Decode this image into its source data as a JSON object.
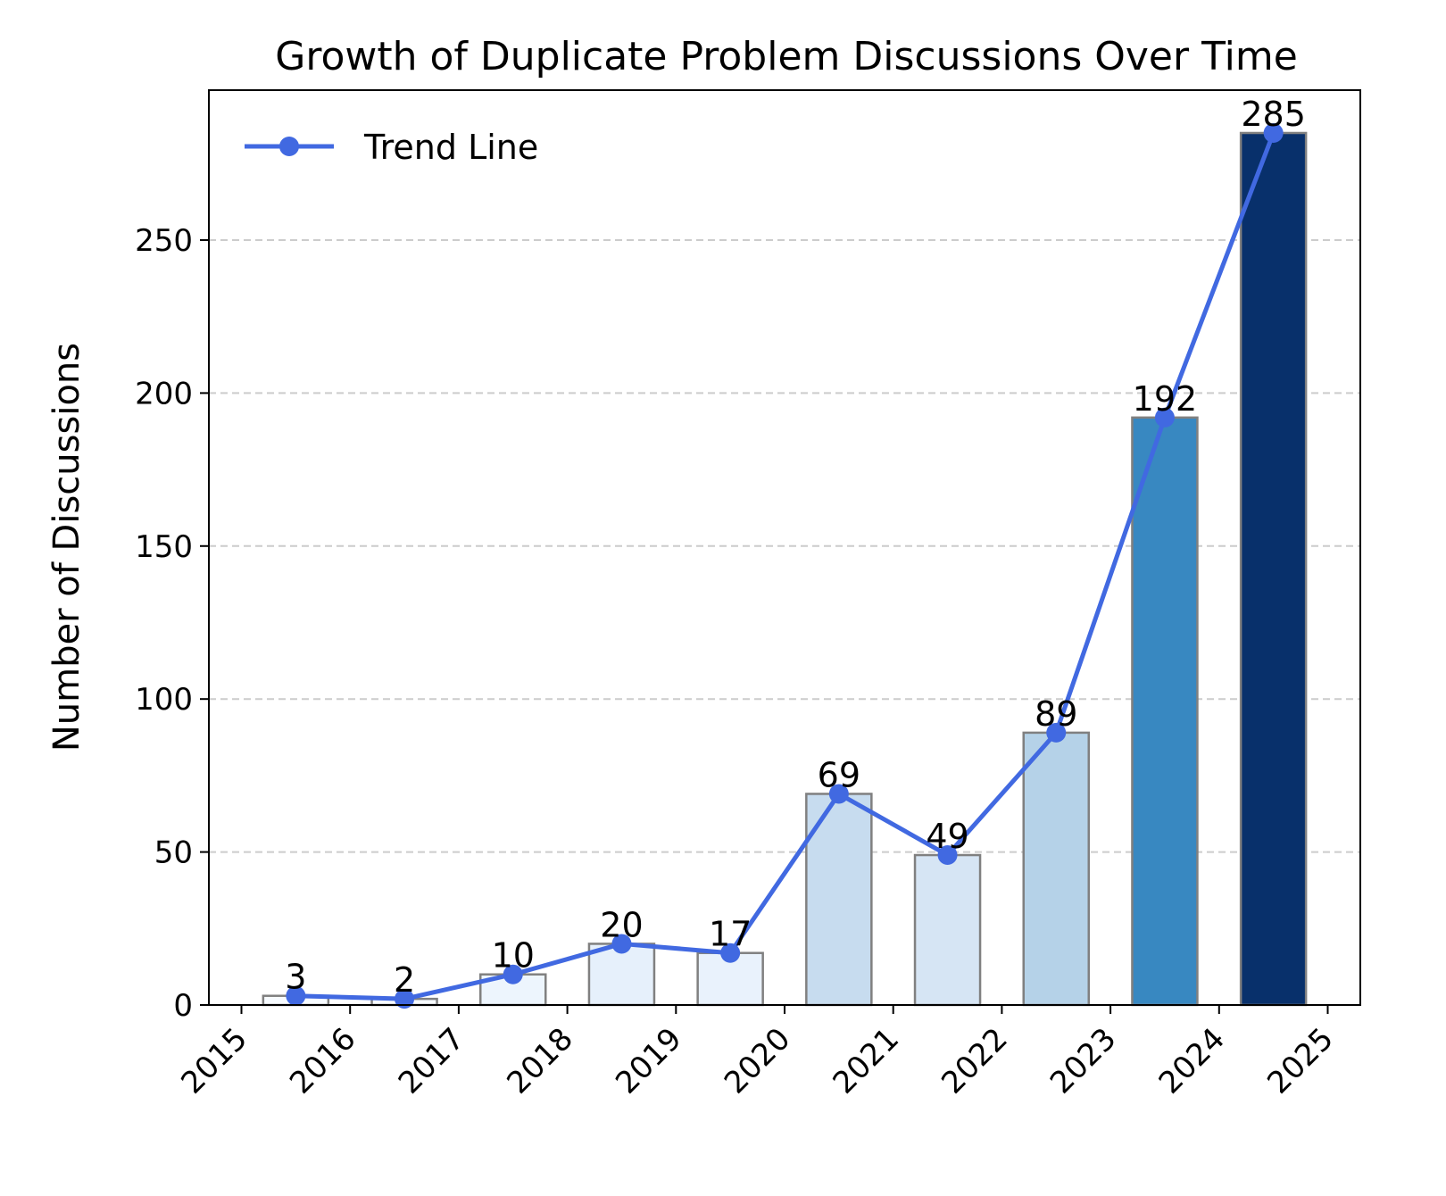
{
  "chart_data": {
    "type": "bar",
    "title": "Growth of Duplicate Problem Discussions Over Time",
    "xlabel": "",
    "ylabel": "Number of Discussions",
    "x_ticks": [
      "2015",
      "2016",
      "2017",
      "2018",
      "2019",
      "2020",
      "2021",
      "2022",
      "2023",
      "2024",
      "2025"
    ],
    "xlim": [
      2014.7,
      2025.3
    ],
    "ylim": [
      0,
      299
    ],
    "y_ticks": [
      0,
      50,
      100,
      150,
      200,
      250
    ],
    "grid": "y-dashed",
    "bars": [
      {
        "x": 2015.5,
        "value": 3,
        "label": "3",
        "color": "#f7fbff"
      },
      {
        "x": 2016.5,
        "value": 2,
        "label": "2",
        "color": "#f7fbff"
      },
      {
        "x": 2017.5,
        "value": 10,
        "label": "10",
        "color": "#edf5fd"
      },
      {
        "x": 2018.5,
        "value": 20,
        "label": "20",
        "color": "#e6f0fb"
      },
      {
        "x": 2019.5,
        "value": 17,
        "label": "17",
        "color": "#e9f2fc"
      },
      {
        "x": 2020.5,
        "value": 69,
        "label": "69",
        "color": "#c7dcef"
      },
      {
        "x": 2021.5,
        "value": 49,
        "label": "49",
        "color": "#d6e5f4"
      },
      {
        "x": 2022.5,
        "value": 89,
        "label": "89",
        "color": "#b5d2e8"
      },
      {
        "x": 2023.5,
        "value": 192,
        "label": "192",
        "color": "#3888c1"
      },
      {
        "x": 2024.5,
        "value": 285,
        "label": "285",
        "color": "#08306b"
      }
    ],
    "bar_edge_color": "#808080",
    "series": [
      {
        "name": "Trend Line",
        "type": "line",
        "color": "#4169e1",
        "x": [
          2015.5,
          2016.5,
          2017.5,
          2018.5,
          2019.5,
          2020.5,
          2021.5,
          2022.5,
          2023.5,
          2024.5
        ],
        "values": [
          3,
          2,
          10,
          20,
          17,
          69,
          49,
          89,
          192,
          285
        ]
      }
    ],
    "legend": {
      "placement": "top-left",
      "entries": [
        "Trend Line"
      ]
    }
  }
}
